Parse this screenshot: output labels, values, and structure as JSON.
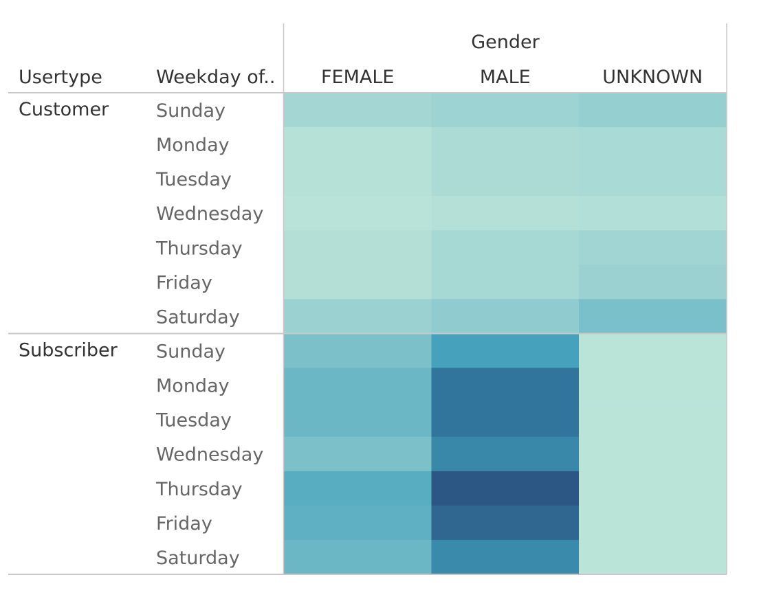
{
  "chart_data": {
    "type": "heatmap",
    "column_group_label": "Gender",
    "row_headers": [
      "Usertype",
      "Weekday of.."
    ],
    "columns": [
      "FEMALE",
      "MALE",
      "UNKNOWN"
    ],
    "groups": [
      {
        "name": "Customer",
        "rows": [
          "Sunday",
          "Monday",
          "Tuesday",
          "Wednesday",
          "Thursday",
          "Friday",
          "Saturday"
        ],
        "values": [
          [
            0.26,
            0.31,
            0.36
          ],
          [
            0.08,
            0.19,
            0.22
          ],
          [
            0.08,
            0.19,
            0.22
          ],
          [
            0.04,
            0.1,
            0.12
          ],
          [
            0.11,
            0.25,
            0.29
          ],
          [
            0.11,
            0.25,
            0.32
          ],
          [
            0.32,
            0.4,
            0.52
          ]
        ]
      },
      {
        "name": "Subscriber",
        "rows": [
          "Sunday",
          "Monday",
          "Tuesday",
          "Wednesday",
          "Thursday",
          "Friday",
          "Saturday"
        ],
        "values": [
          [
            0.51,
            0.7,
            0.02
          ],
          [
            0.57,
            0.87,
            0.02
          ],
          [
            0.57,
            0.87,
            0.02
          ],
          [
            0.51,
            0.8,
            0.02
          ],
          [
            0.63,
            1.0,
            0.02
          ],
          [
            0.61,
            0.93,
            0.02
          ],
          [
            0.57,
            0.79,
            0.02
          ]
        ]
      }
    ],
    "color_scale": {
      "low": "#bce4d8",
      "high": "#2c5985"
    },
    "value_note": "relative intensity 0-1 estimated from color; no legend shown"
  }
}
